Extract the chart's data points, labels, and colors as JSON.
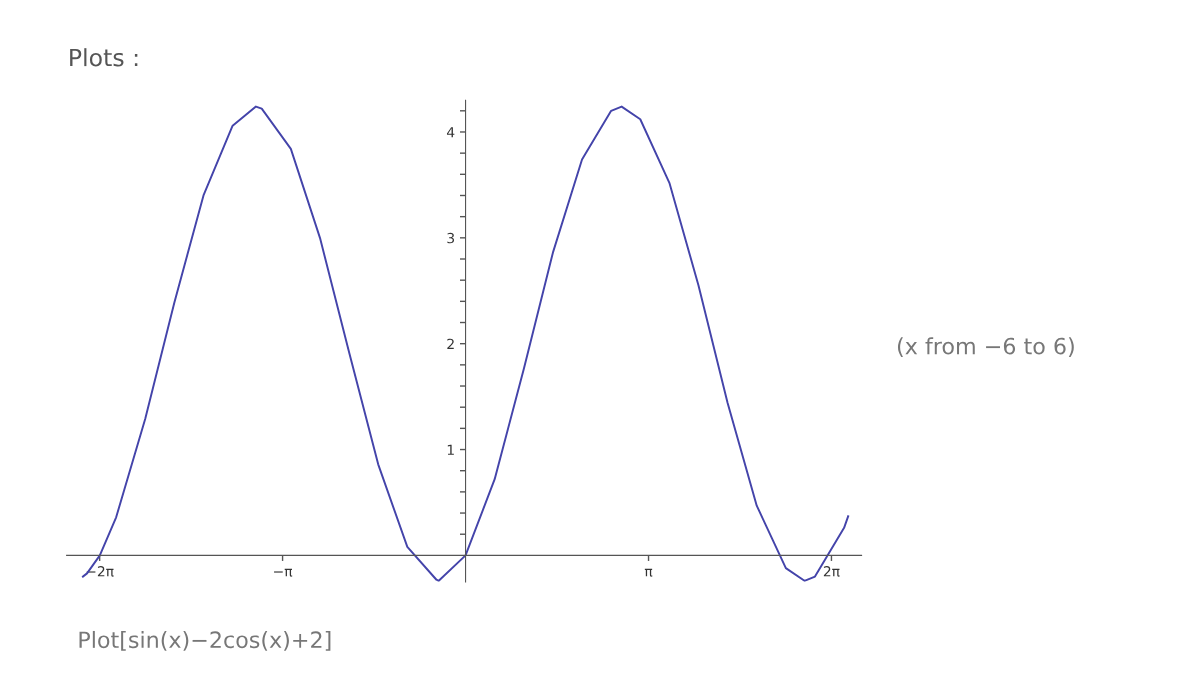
{
  "chart_data": {
    "type": "line",
    "title": "Plots :",
    "annotations": [
      "(x from −6 to 6)",
      "Plot[sin(x)−2cos(x)+2]"
    ],
    "x": [
      -6.57,
      -6.5,
      -6.28,
      -6,
      -5.5,
      -5,
      -4.5,
      -4,
      -3.6,
      -3.5,
      -3,
      -2.5,
      -2,
      -1.5,
      -1,
      -0.5,
      -0.46,
      0,
      0.5,
      1,
      1.5,
      2,
      2.5,
      2.68,
      3,
      3.5,
      4,
      4.5,
      5,
      5.5,
      5.82,
      6,
      6.5,
      6.57
    ],
    "series": [
      {
        "color": "#4444aa",
        "values": [
          -0.2,
          -0.17,
          0,
          0.36,
          1.29,
          2.39,
          3.4,
          4.06,
          4.24,
          4.22,
          3.84,
          3.0,
          1.92,
          0.86,
          0.08,
          -0.23,
          -0.24,
          0,
          0.72,
          1.76,
          2.86,
          3.74,
          4.2,
          4.24,
          4.12,
          3.52,
          2.55,
          1.44,
          0.47,
          -0.12,
          -0.24,
          -0.2,
          0.26,
          0.37
        ]
      }
    ],
    "xlim": [
      -6.85,
      6.8
    ],
    "ylim": [
      -0.25,
      4.3
    ],
    "xticks": [
      {
        "value": -6.283,
        "label": "−2π"
      },
      {
        "value": -3.142,
        "label": "−π"
      },
      {
        "value": 3.142,
        "label": "π"
      },
      {
        "value": 6.283,
        "label": "2π"
      }
    ],
    "yticks": [
      {
        "value": 0.2,
        "label": null
      },
      {
        "value": 0.4,
        "label": null
      },
      {
        "value": 0.6,
        "label": null
      },
      {
        "value": 0.8,
        "label": null
      },
      1,
      {
        "value": 1.2,
        "label": null
      },
      {
        "value": 1.4,
        "label": null
      },
      {
        "value": 1.6,
        "label": null
      },
      {
        "value": 1.8,
        "label": null
      },
      2,
      {
        "value": 2.2,
        "label": null
      },
      {
        "value": 2.4,
        "label": null
      },
      {
        "value": 2.6,
        "label": null
      },
      {
        "value": 2.8,
        "label": null
      },
      3,
      {
        "value": 3.2,
        "label": null
      },
      {
        "value": 3.4,
        "label": null
      },
      {
        "value": 3.6,
        "label": null
      },
      {
        "value": 3.8,
        "label": null
      },
      4,
      {
        "value": 4.2,
        "label": null
      }
    ],
    "grid": false,
    "legend": false,
    "marker": "none",
    "line_style": "solid"
  }
}
